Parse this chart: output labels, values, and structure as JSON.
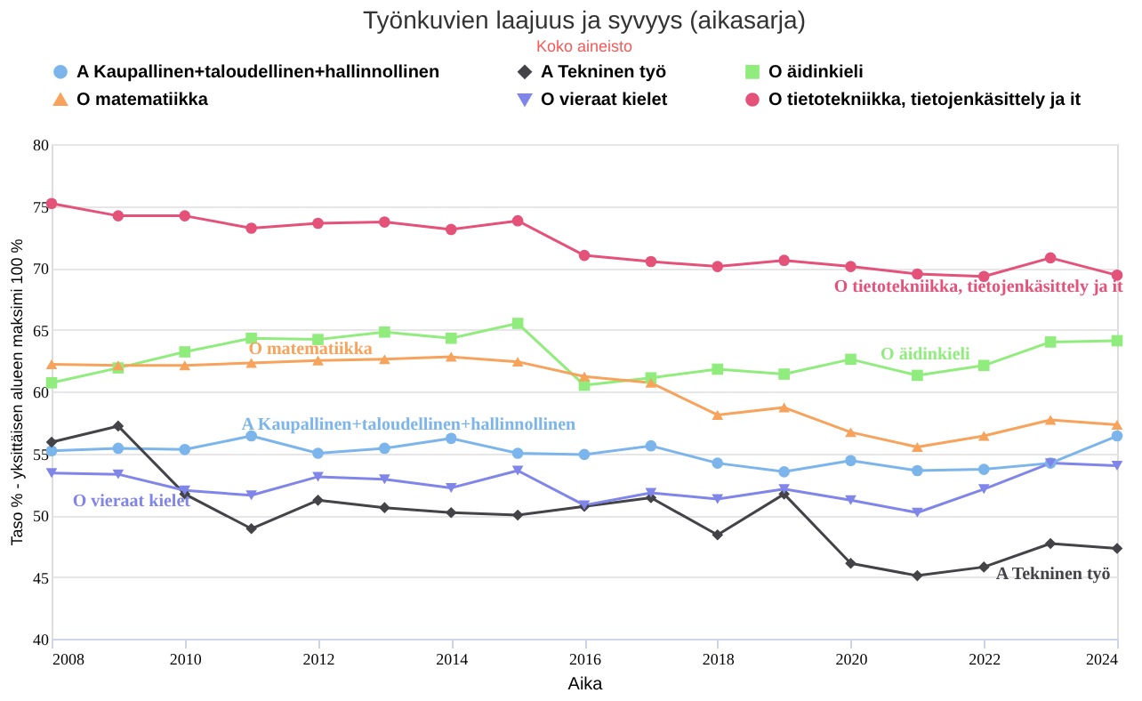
{
  "chart_data": {
    "type": "line",
    "title": "Työnkuvien laajuus ja syvyys (aikasarja)",
    "subtitle": "Koko aineisto",
    "xlabel": "Aika",
    "ylabel": "Taso % - yksittäisen alueen maksimi 100 %",
    "x": [
      2008,
      2009,
      2010,
      2011,
      2012,
      2013,
      2014,
      2015,
      2016,
      2017,
      2018,
      2019,
      2020,
      2021,
      2022,
      2023,
      2024
    ],
    "series": [
      {
        "name": "A Kaupallinen+taloudellinen+hallinnollinen",
        "color": "#7cb5ec",
        "marker": "circle",
        "values": [
          55.2,
          55.4,
          55.3,
          56.4,
          55.0,
          55.4,
          56.2,
          55.0,
          54.9,
          55.6,
          54.2,
          53.5,
          54.4,
          53.6,
          53.7,
          54.2,
          56.4
        ]
      },
      {
        "name": "A Tekninen työ",
        "color": "#434348",
        "marker": "diamond",
        "values": [
          55.9,
          57.2,
          51.7,
          48.9,
          51.2,
          50.6,
          50.2,
          50.0,
          50.7,
          51.4,
          48.4,
          51.7,
          46.1,
          45.1,
          45.8,
          47.7,
          47.3
        ]
      },
      {
        "name": "O äidinkieli",
        "color": "#90ed7d",
        "marker": "square",
        "values": [
          60.7,
          61.9,
          63.2,
          64.3,
          64.2,
          64.8,
          64.3,
          65.5,
          60.5,
          61.1,
          61.8,
          61.4,
          62.6,
          61.3,
          62.1,
          64.0,
          64.1
        ]
      },
      {
        "name": "O matematiikka",
        "color": "#f7a35c",
        "marker": "triangle",
        "values": [
          62.2,
          62.1,
          62.1,
          62.3,
          62.5,
          62.6,
          62.8,
          62.4,
          61.2,
          60.7,
          58.1,
          58.7,
          56.7,
          55.5,
          56.4,
          57.7,
          57.3
        ]
      },
      {
        "name": "O vieraat kielet",
        "color": "#8085e9",
        "marker": "triangle-down",
        "values": [
          53.4,
          53.3,
          52.0,
          51.6,
          53.1,
          52.9,
          52.2,
          53.6,
          50.8,
          51.8,
          51.3,
          52.1,
          51.2,
          50.2,
          52.1,
          54.2,
          54.0
        ]
      },
      {
        "name": "O tietotekniikka, tietojenkäsittely ja it",
        "color": "#e4527a",
        "marker": "circle",
        "values": [
          75.2,
          74.2,
          74.2,
          73.2,
          73.6,
          73.7,
          73.1,
          73.8,
          71.0,
          70.5,
          70.1,
          70.6,
          70.1,
          69.5,
          69.3,
          70.8,
          69.4
        ]
      }
    ],
    "annotations": [
      "A Kaupallinen+taloudellinen+hallinnollinen",
      "A Tekninen työ",
      "O äidinkieli",
      "O matematiikka",
      "O vieraat kielet",
      "O tietotekniikka, tietojenkäsittely ja it"
    ],
    "xlim": [
      2008,
      2024
    ],
    "xticks": [
      2008,
      2010,
      2012,
      2014,
      2016,
      2018,
      2020,
      2022,
      2024
    ],
    "ylim": [
      40,
      80
    ],
    "yticks": [
      40,
      45,
      50,
      55,
      60,
      65,
      70,
      75,
      80
    ],
    "grid": "y",
    "legend": "top",
    "line_style": "solid"
  }
}
